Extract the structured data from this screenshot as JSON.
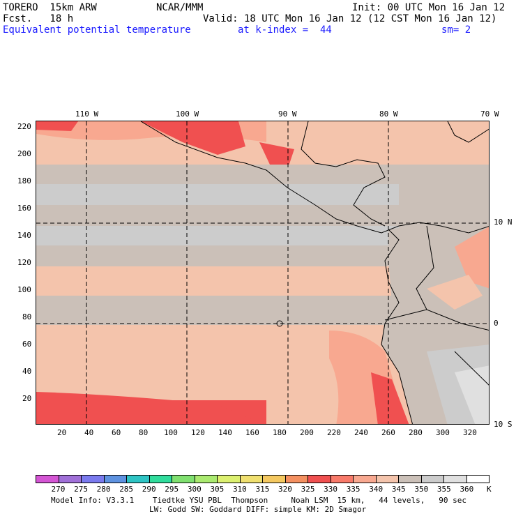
{
  "header": {
    "model": "TORERO  15km ARW",
    "center": "NCAR/MMM",
    "init": "Init: 00 UTC Mon 16 Jan 12",
    "fcst": "Fcst.   18 h",
    "valid": "Valid: 18 UTC Mon 16 Jan 12 (12 CST Mon 16 Jan 12)",
    "field": "Equivalent potential temperature",
    "level": "at k-index =  44",
    "smooth": "sm= 2"
  },
  "map": {
    "lon_labels": [
      "110 W",
      "100 W",
      "90 W",
      "80 W",
      "70 W"
    ],
    "lat_labels": [
      "10 N",
      "0",
      "10 S"
    ],
    "y_ticks": [
      "220",
      "200",
      "180",
      "160",
      "140",
      "120",
      "100",
      "80",
      "60",
      "40",
      "20"
    ],
    "x_ticks": [
      "20",
      "40",
      "60",
      "80",
      "100",
      "120",
      "140",
      "160",
      "180",
      "200",
      "220",
      "240",
      "260",
      "280",
      "300",
      "320"
    ]
  },
  "colorbar": {
    "labels": [
      "270",
      "275",
      "280",
      "285",
      "290",
      "295",
      "300",
      "305",
      "310",
      "315",
      "320",
      "325",
      "330",
      "335",
      "340",
      "345",
      "350",
      "355",
      "360"
    ],
    "unit": "K",
    "colors": [
      "#d455d4",
      "#a070d8",
      "#7a7aee",
      "#5e92e0",
      "#2ec4c4",
      "#30dc9c",
      "#80e070",
      "#aaea70",
      "#dcf070",
      "#f0e070",
      "#f4c860",
      "#f49060",
      "#f05050",
      "#f87a6a",
      "#f8a890",
      "#f4c4ac",
      "#cbc0b8",
      "#cccccc",
      "#e0e0e0",
      "#ffffff"
    ]
  },
  "footer": {
    "line1": "Model Info: V3.3.1    Tiedtke YSU PBL  Thompson     Noah LSM  15 km,   44 levels,   90 sec",
    "line2": "LW: Godd SW: Goddard DIFF: simple KM: 2D Smagor"
  }
}
